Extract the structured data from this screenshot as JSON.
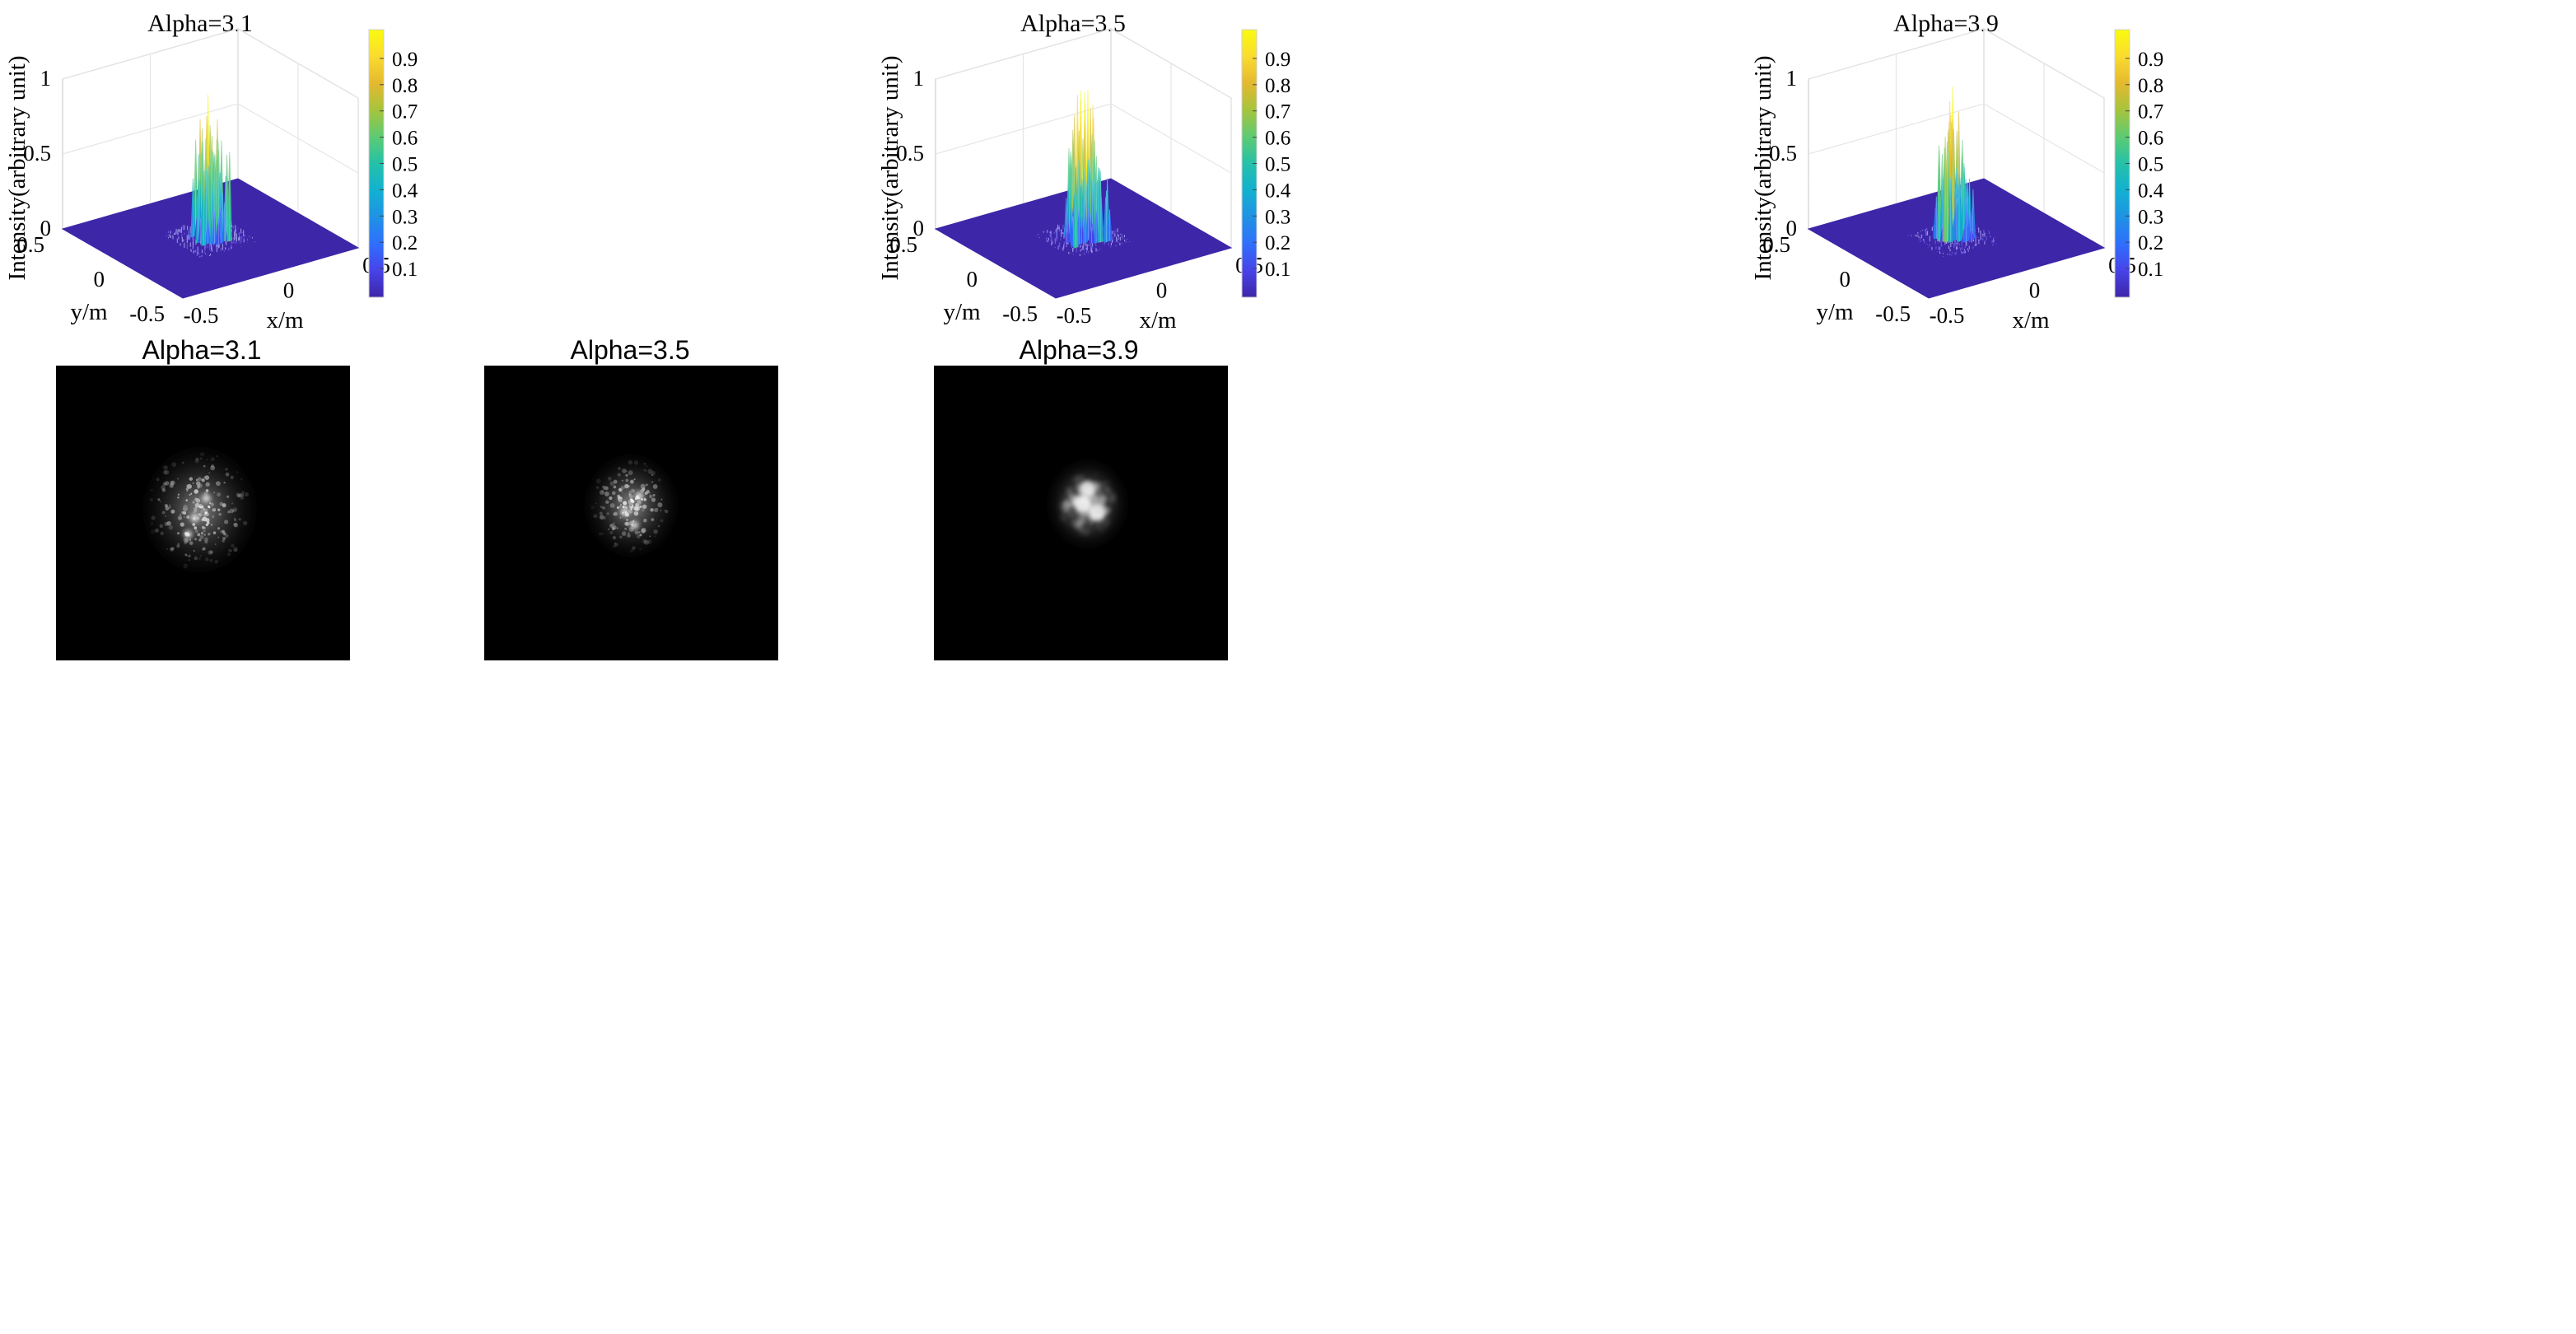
{
  "figure": {
    "panels_3d": [
      {
        "title": "Alpha=3.1",
        "alpha": 3.1
      },
      {
        "title": "Alpha=3.5",
        "alpha": 3.5
      },
      {
        "title": "Alpha=3.9",
        "alpha": 3.9
      }
    ],
    "panels_2d": [
      {
        "title": "Alpha=3.1",
        "alpha": 3.1
      },
      {
        "title": "Alpha=3.5",
        "alpha": 3.5
      },
      {
        "title": "Alpha=3.9",
        "alpha": 3.9
      }
    ],
    "axes": {
      "zlabel": "Intensity(arbitrary unit)",
      "xlabel": "x/m",
      "ylabel": "y/m",
      "z_ticks": [
        "0",
        "0.5",
        "1"
      ],
      "x_ticks": [
        "-0.5",
        "0",
        "0.5"
      ],
      "y_ticks": [
        "0.5",
        "0",
        "-0.5"
      ],
      "colorbar_ticks": [
        "0.1",
        "0.2",
        "0.3",
        "0.4",
        "0.5",
        "0.6",
        "0.7",
        "0.8",
        "0.9"
      ]
    },
    "colormap": [
      "#3e26a8",
      "#4743e9",
      "#2f6ffd",
      "#1f92e4",
      "#12b1d0",
      "#25c1a9",
      "#5dcb72",
      "#a6c43d",
      "#e4b92f",
      "#fadb2f",
      "#f9fb0e"
    ],
    "surface_color": "#3e26a8",
    "image_background": "#000000"
  },
  "chart_data": [
    {
      "type": "surface3d",
      "title": "Alpha=3.1",
      "xlabel": "x/m",
      "ylabel": "y/m",
      "zlabel": "Intensity(arbitrary unit)",
      "xlim": [
        -0.5,
        0.5
      ],
      "ylim": [
        -0.5,
        0.5
      ],
      "zlim": [
        0,
        1
      ],
      "colorbar_range": [
        0,
        1
      ],
      "peak": 0.95,
      "grid": true
    },
    {
      "type": "surface3d",
      "title": "Alpha=3.5",
      "xlabel": "x/m",
      "ylabel": "y/m",
      "zlabel": "Intensity(arbitrary unit)",
      "xlim": [
        -0.5,
        0.5
      ],
      "ylim": [
        -0.5,
        0.5
      ],
      "zlim": [
        0,
        1
      ],
      "colorbar_range": [
        0,
        1
      ],
      "peak": 0.98,
      "grid": true
    },
    {
      "type": "surface3d",
      "title": "Alpha=3.9",
      "xlabel": "x/m",
      "ylabel": "y/m",
      "zlabel": "Intensity(arbitrary unit)",
      "xlim": [
        -0.5,
        0.5
      ],
      "ylim": [
        -0.5,
        0.5
      ],
      "zlim": [
        0,
        1
      ],
      "colorbar_range": [
        0,
        1
      ],
      "peak": 1.0,
      "grid": true
    },
    {
      "type": "heatmap",
      "title": "Alpha=3.1",
      "colormap": "gray"
    },
    {
      "type": "heatmap",
      "title": "Alpha=3.5",
      "colormap": "gray"
    },
    {
      "type": "heatmap",
      "title": "Alpha=3.9",
      "colormap": "gray"
    }
  ]
}
